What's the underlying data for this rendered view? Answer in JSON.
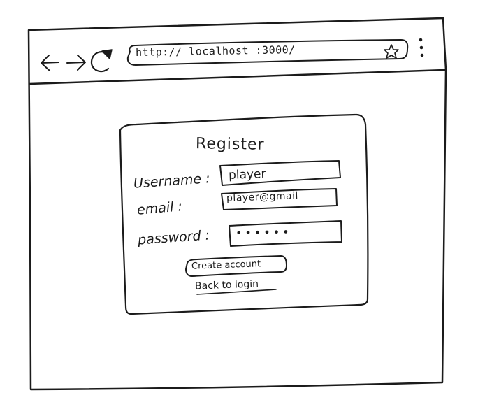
{
  "browser": {
    "back_icon": "arrow-left-icon",
    "forward_icon": "arrow-right-icon",
    "reload_icon": "reload-icon",
    "url": "http:// localhost :3000/",
    "bookmark_icon": "star-icon",
    "menu_icon": "kebab-menu-icon"
  },
  "register": {
    "title": "Register",
    "username_label": "Username :",
    "username_value": "player",
    "email_label": "email :",
    "email_value": "player@gmail",
    "password_label": "password :",
    "password_value": "••••••",
    "create_button": "Create account",
    "back_link": "Back to login"
  }
}
